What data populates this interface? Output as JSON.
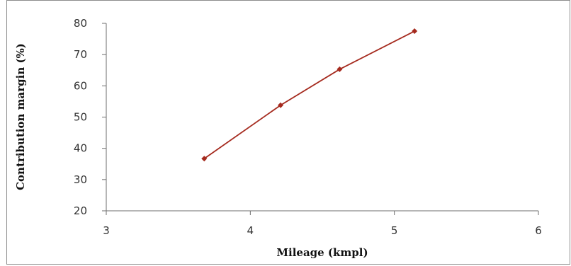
{
  "chart_data": {
    "type": "line",
    "title": "",
    "xlabel": "Mileage (kmpl)",
    "ylabel": "Contribution margin (%)",
    "xlim": [
      3,
      6
    ],
    "ylim": [
      20,
      80
    ],
    "x_ticks": [
      3,
      4,
      5,
      6
    ],
    "y_ticks": [
      20,
      30,
      40,
      50,
      60,
      70,
      80
    ],
    "grid": false,
    "legend": "none",
    "series": [
      {
        "color": "#a52a1e",
        "marker": "diamond",
        "points": [
          {
            "x": 3.68,
            "y": 36.7
          },
          {
            "x": 4.21,
            "y": 53.8
          },
          {
            "x": 4.62,
            "y": 65.3
          },
          {
            "x": 5.14,
            "y": 77.5
          }
        ]
      }
    ]
  }
}
